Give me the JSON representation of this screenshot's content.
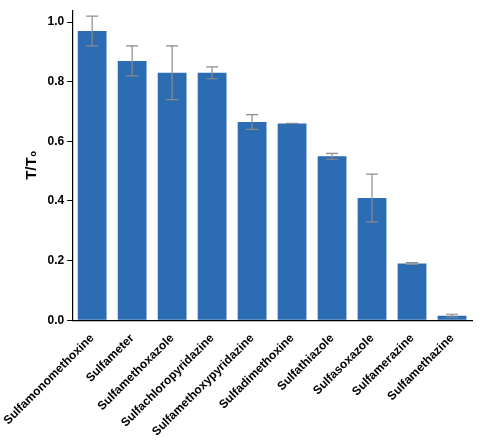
{
  "chart_data": {
    "type": "bar",
    "y_label": "T/T₀",
    "categories": [
      "Sulfamonomethoxine",
      "Sulfameter",
      "Sulfamethoxazole",
      "Sulfachloropyridazine",
      "Sulfamethoxypyridazine",
      "Sulfadimethoxine",
      "Sulfathiazole",
      "Sulfasoxazole",
      "Sulfamerazine",
      "Sulfamethazine"
    ],
    "values": [
      0.97,
      0.87,
      0.83,
      0.83,
      0.665,
      0.66,
      0.55,
      0.41,
      0.19,
      0.015
    ],
    "errors": [
      0.05,
      0.05,
      0.09,
      0.02,
      0.025,
      0,
      0.01,
      0.08,
      0.003,
      0.005
    ],
    "color": "#2b6cb3",
    "ylim": [
      0,
      1.04
    ],
    "yticks": [
      {
        "value": 0,
        "label": "0.0"
      },
      {
        "value": 0.2,
        "label": "0.2"
      },
      {
        "value": 0.4,
        "label": "0.4"
      },
      {
        "value": 0.6,
        "label": "0.6"
      },
      {
        "value": 0.8,
        "label": "0.8"
      },
      {
        "value": 1,
        "label": "1.0"
      }
    ],
    "grid": false
  }
}
